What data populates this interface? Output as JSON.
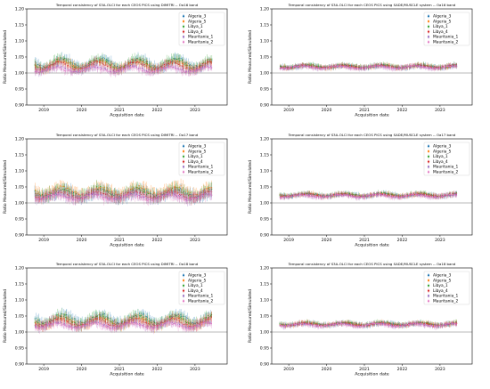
{
  "chart_data": [
    {
      "type": "scatter",
      "title": "Temporal consistency of S3A-OLCI for each CEOS PICS using DIMITRI -- Oa16 band",
      "xlabel": "Acquisition date",
      "ylabel": "Ratio Measured/Simulated",
      "xlim": [
        2018.55,
        2023.85
      ],
      "ylim": [
        0.9,
        1.2
      ],
      "x_ticks": [
        2019,
        2020,
        2021,
        2022,
        2023
      ],
      "x_tick_labels": [
        "2019",
        "2020",
        "2021",
        "2022",
        "2023"
      ],
      "y_ticks": [
        0.9,
        0.95,
        1.0,
        1.05,
        1.1,
        1.15,
        1.2
      ],
      "y_tick_labels": [
        "0.90",
        "0.95",
        "1.00",
        "1.05",
        "1.10",
        "1.15",
        "1.20"
      ],
      "reference_line": 1.0,
      "legend_position": "top-right",
      "series": [
        {
          "name": "Algeria_3",
          "base": 1.03,
          "amp": 0.014,
          "spread": 0.02,
          "phase": 0.0
        },
        {
          "name": "Algeria_5",
          "base": 1.025,
          "amp": 0.012,
          "spread": 0.018,
          "phase": 0.3
        },
        {
          "name": "Libya_1",
          "base": 1.03,
          "amp": 0.015,
          "spread": 0.02,
          "phase": 0.6
        },
        {
          "name": "Libya_4",
          "base": 1.022,
          "amp": 0.012,
          "spread": 0.018,
          "phase": 0.9
        },
        {
          "name": "Mauritania_1",
          "base": 1.012,
          "amp": 0.008,
          "spread": 0.015,
          "phase": 1.2
        },
        {
          "name": "Mauritania_2",
          "base": 1.01,
          "amp": 0.008,
          "spread": 0.015,
          "phase": 1.5
        }
      ]
    },
    {
      "type": "scatter",
      "title": "Temporal consistency of S3A-OLCI for each CEOS PICS using SADE/MUSCLE system -- Oa16 band",
      "xlabel": "Acquisition date",
      "ylabel": "Ratio Measured/Simulated",
      "xlim": [
        2018.55,
        2023.85
      ],
      "ylim": [
        0.9,
        1.2
      ],
      "x_ticks": [
        2019,
        2020,
        2021,
        2022,
        2023
      ],
      "x_tick_labels": [
        "2019",
        "2020",
        "2021",
        "2022",
        "2023"
      ],
      "y_ticks": [
        0.9,
        0.95,
        1.0,
        1.05,
        1.1,
        1.15,
        1.2
      ],
      "y_tick_labels": [
        "0.90",
        "0.95",
        "1.00",
        "1.05",
        "1.10",
        "1.15",
        "1.20"
      ],
      "reference_line": 1.0,
      "legend_position": "top-right",
      "series": [
        {
          "name": "Algeria_3",
          "base": 1.02,
          "amp": 0.004,
          "spread": 0.01,
          "phase": 0.0
        },
        {
          "name": "Algeria_5",
          "base": 1.02,
          "amp": 0.004,
          "spread": 0.01,
          "phase": 0.3
        },
        {
          "name": "Libya_1",
          "base": 1.022,
          "amp": 0.004,
          "spread": 0.01,
          "phase": 0.6
        },
        {
          "name": "Libya_4",
          "base": 1.02,
          "amp": 0.004,
          "spread": 0.01,
          "phase": 0.9
        },
        {
          "name": "Mauritania_1",
          "base": 1.018,
          "amp": 0.004,
          "spread": 0.01,
          "phase": 1.2
        },
        {
          "name": "Mauritania_2",
          "base": 1.018,
          "amp": 0.004,
          "spread": 0.01,
          "phase": 1.5
        }
      ]
    },
    {
      "type": "scatter",
      "title": "Temporal consistency of S3A-OLCI for each CEOS PICS using DIMITRI -- Oa17 band",
      "xlabel": "Acquisition date",
      "ylabel": "Ratio Measured/Simulated",
      "xlim": [
        2018.55,
        2023.85
      ],
      "ylim": [
        0.9,
        1.2
      ],
      "x_ticks": [
        2019,
        2020,
        2021,
        2022,
        2023
      ],
      "x_tick_labels": [
        "2019",
        "2020",
        "2021",
        "2022",
        "2023"
      ],
      "y_ticks": [
        0.9,
        0.95,
        1.0,
        1.05,
        1.1,
        1.15,
        1.2
      ],
      "y_tick_labels": [
        "0.90",
        "0.95",
        "1.00",
        "1.05",
        "1.10",
        "1.15",
        "1.20"
      ],
      "reference_line": 1.0,
      "legend_position": "top-right",
      "series": [
        {
          "name": "Algeria_3",
          "base": 1.03,
          "amp": 0.012,
          "spread": 0.025,
          "phase": 0.0
        },
        {
          "name": "Algeria_5",
          "base": 1.038,
          "amp": 0.012,
          "spread": 0.025,
          "phase": 0.3
        },
        {
          "name": "Libya_1",
          "base": 1.032,
          "amp": 0.012,
          "spread": 0.025,
          "phase": 0.6
        },
        {
          "name": "Libya_4",
          "base": 1.025,
          "amp": 0.01,
          "spread": 0.02,
          "phase": 0.9
        },
        {
          "name": "Mauritania_1",
          "base": 1.02,
          "amp": 0.008,
          "spread": 0.02,
          "phase": 1.2
        },
        {
          "name": "Mauritania_2",
          "base": 1.018,
          "amp": 0.008,
          "spread": 0.02,
          "phase": 1.5
        }
      ]
    },
    {
      "type": "scatter",
      "title": "Temporal consistency of S3A-OLCI for each CEOS PICS using SADE/MUSCLE system -- Oa17 band",
      "xlabel": "Acquisition date",
      "ylabel": "Ratio Measured/Simulated",
      "xlim": [
        2018.55,
        2023.85
      ],
      "ylim": [
        0.9,
        1.2
      ],
      "x_ticks": [
        2019,
        2020,
        2021,
        2022,
        2023
      ],
      "x_tick_labels": [
        "2019",
        "2020",
        "2021",
        "2022",
        "2023"
      ],
      "y_ticks": [
        0.9,
        0.95,
        1.0,
        1.05,
        1.1,
        1.15,
        1.2
      ],
      "y_tick_labels": [
        "0.90",
        "0.95",
        "1.00",
        "1.05",
        "1.10",
        "1.15",
        "1.20"
      ],
      "reference_line": 1.0,
      "legend_position": "top-right",
      "series": [
        {
          "name": "Algeria_3",
          "base": 1.025,
          "amp": 0.004,
          "spread": 0.01,
          "phase": 0.0
        },
        {
          "name": "Algeria_5",
          "base": 1.025,
          "amp": 0.004,
          "spread": 0.01,
          "phase": 0.3
        },
        {
          "name": "Libya_1",
          "base": 1.026,
          "amp": 0.004,
          "spread": 0.01,
          "phase": 0.6
        },
        {
          "name": "Libya_4",
          "base": 1.024,
          "amp": 0.004,
          "spread": 0.01,
          "phase": 0.9
        },
        {
          "name": "Mauritania_1",
          "base": 1.022,
          "amp": 0.004,
          "spread": 0.01,
          "phase": 1.2
        },
        {
          "name": "Mauritania_2",
          "base": 1.022,
          "amp": 0.004,
          "spread": 0.01,
          "phase": 1.5
        }
      ]
    },
    {
      "type": "scatter",
      "title": "Temporal consistency of S3A-OLCI for each CEOS PICS using DIMITRI -- Oa18 band",
      "xlabel": "Acquisition date",
      "ylabel": "Ratio Measured/Simulated",
      "xlim": [
        2018.55,
        2023.85
      ],
      "ylim": [
        0.9,
        1.2
      ],
      "x_ticks": [
        2019,
        2020,
        2021,
        2022,
        2023
      ],
      "x_tick_labels": [
        "2019",
        "2020",
        "2021",
        "2022",
        "2023"
      ],
      "y_ticks": [
        0.9,
        0.95,
        1.0,
        1.05,
        1.1,
        1.15,
        1.2
      ],
      "y_tick_labels": [
        "0.90",
        "0.95",
        "1.00",
        "1.05",
        "1.10",
        "1.15",
        "1.20"
      ],
      "reference_line": 1.0,
      "legend_position": "top-right",
      "series": [
        {
          "name": "Algeria_3",
          "base": 1.04,
          "amp": 0.014,
          "spread": 0.022,
          "phase": 0.0
        },
        {
          "name": "Algeria_5",
          "base": 1.032,
          "amp": 0.012,
          "spread": 0.02,
          "phase": 0.3
        },
        {
          "name": "Libya_1",
          "base": 1.038,
          "amp": 0.014,
          "spread": 0.022,
          "phase": 0.6
        },
        {
          "name": "Libya_4",
          "base": 1.03,
          "amp": 0.012,
          "spread": 0.02,
          "phase": 0.9
        },
        {
          "name": "Mauritania_1",
          "base": 1.022,
          "amp": 0.008,
          "spread": 0.016,
          "phase": 1.2
        },
        {
          "name": "Mauritania_2",
          "base": 1.02,
          "amp": 0.008,
          "spread": 0.016,
          "phase": 1.5
        }
      ]
    },
    {
      "type": "scatter",
      "title": "Temporal consistency of S3A-OLCI for each CEOS PICS using SADE/MUSCLE system -- Oa18 band",
      "xlabel": "Acquisition date",
      "ylabel": "Ratio Measured/Simulated",
      "xlim": [
        2018.55,
        2023.85
      ],
      "ylim": [
        0.9,
        1.2
      ],
      "x_ticks": [
        2019,
        2020,
        2021,
        2022,
        2023
      ],
      "x_tick_labels": [
        "2019",
        "2020",
        "2021",
        "2022",
        "2023"
      ],
      "y_ticks": [
        0.9,
        0.95,
        1.0,
        1.05,
        1.1,
        1.15,
        1.2
      ],
      "y_tick_labels": [
        "0.90",
        "0.95",
        "1.00",
        "1.05",
        "1.10",
        "1.15",
        "1.20"
      ],
      "reference_line": 1.0,
      "legend_position": "top-right",
      "series": [
        {
          "name": "Algeria_3",
          "base": 1.025,
          "amp": 0.004,
          "spread": 0.01,
          "phase": 0.0
        },
        {
          "name": "Algeria_5",
          "base": 1.025,
          "amp": 0.004,
          "spread": 0.01,
          "phase": 0.3
        },
        {
          "name": "Libya_1",
          "base": 1.026,
          "amp": 0.004,
          "spread": 0.01,
          "phase": 0.6
        },
        {
          "name": "Libya_4",
          "base": 1.024,
          "amp": 0.004,
          "spread": 0.01,
          "phase": 0.9
        },
        {
          "name": "Mauritania_1",
          "base": 1.022,
          "amp": 0.004,
          "spread": 0.01,
          "phase": 1.2
        },
        {
          "name": "Mauritania_2",
          "base": 1.022,
          "amp": 0.004,
          "spread": 0.01,
          "phase": 1.5
        }
      ]
    }
  ],
  "colors": {
    "Algeria_3": "#1f77b4",
    "Algeria_5": "#ff7f0e",
    "Libya_1": "#2ca02c",
    "Libya_4": "#d62728",
    "Mauritania_1": "#9467bd",
    "Mauritania_2": "#e377c2",
    "reference_line": "#777777",
    "axes": "#000000"
  }
}
